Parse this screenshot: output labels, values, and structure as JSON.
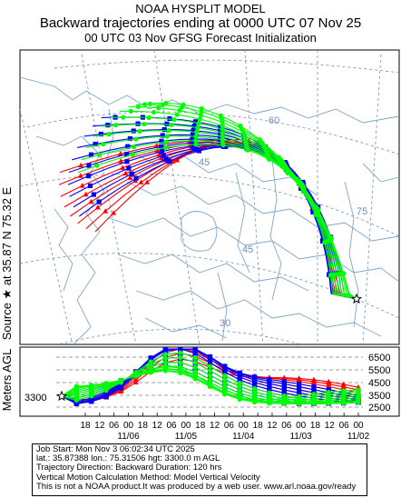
{
  "header": {
    "line1": "NOAA HYSPLIT MODEL",
    "line2": "Backward trajectories ending at 0000 UTC 07 Nov 25",
    "line3": "00 UTC 03 Nov    GFSG  Forecast Initialization"
  },
  "side_label": "Source ★ at  35.87 N  75.32 E",
  "vertical_axis_label": "Meters AGL",
  "map": {
    "latitude_labels": [
      "60",
      "45",
      "45",
      "30"
    ],
    "longitude_labels": [
      "75"
    ]
  },
  "profile": {
    "start_height_label": "3300",
    "height_ticks": [
      "6500",
      "5500",
      "4500",
      "3500",
      "2500"
    ],
    "time_ticks": [
      "18",
      "12",
      "06",
      "00",
      "18",
      "12",
      "06",
      "00",
      "18",
      "12",
      "06",
      "00",
      "18",
      "12",
      "06",
      "00",
      "18",
      "12",
      "06",
      "00"
    ],
    "date_ticks": [
      "11/06",
      "11/05",
      "11/04",
      "11/03",
      "11/02"
    ]
  },
  "colors": {
    "red": "#ff0000",
    "blue": "#0000ff",
    "green": "#00ff00",
    "map_lines": "#7ea6c8",
    "grid": "#6f8fb0"
  },
  "icons": {
    "source": "star-icon"
  },
  "footer": {
    "line1": "Job Start: Mon Nov  3 06:02:34 UTC 2025",
    "line2": "lat.: 35.87388   lon.: 75.31506   hgt: 3300.0 m AGL",
    "line3": "Trajectory Direction: Backward       Duration: 120 hrs",
    "line4": "Vertical Motion Calculation Method: Model Vertical Velocity",
    "line5": "This is not a NOAA product.It was produced by a web user. www.arl.noaa.gov/ready"
  }
}
